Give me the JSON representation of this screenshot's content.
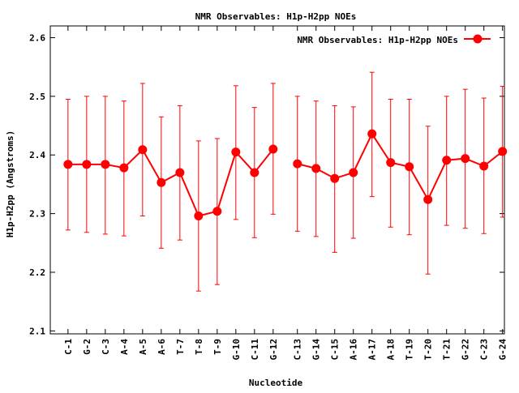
{
  "chart_data": {
    "type": "line",
    "title": "NMR Observables: H1p-H2pp NOEs",
    "xlabel": "Nucleotide",
    "ylabel": "H1p-H2pp (Angstroms)",
    "ylim": [
      2.1,
      2.6
    ],
    "yticks": [
      "2.1",
      "2.2",
      "2.3",
      "2.4",
      "2.5",
      "2.6"
    ],
    "legend": {
      "label": "NMR Observables: H1p-H2pp NOEs",
      "placement": "top-right"
    },
    "grid": false,
    "color": "#ff0000",
    "segments": [
      {
        "x": [
          1,
          2,
          3,
          4,
          5,
          6,
          7,
          8,
          9,
          10,
          11,
          12
        ]
      },
      {
        "x": [
          13,
          14,
          15,
          16,
          17,
          18,
          19,
          20,
          21,
          22,
          23,
          24
        ]
      }
    ],
    "categories": [
      "C-1",
      "G-2",
      "C-3",
      "A-4",
      "A-5",
      "A-6",
      "T-7",
      "T-8",
      "T-9",
      "G-10",
      "C-11",
      "G-12",
      "C-13",
      "G-14",
      "C-15",
      "A-16",
      "A-17",
      "A-18",
      "T-19",
      "T-20",
      "T-21",
      "G-22",
      "C-23",
      "G-24"
    ],
    "x": [
      1,
      2,
      3,
      4,
      5,
      6,
      7,
      8,
      9,
      10,
      11,
      12,
      13.3,
      14.3,
      15.3,
      16.3,
      17.3,
      18.3,
      19.3,
      20.3,
      21.3,
      22.3,
      23.3,
      24.3
    ],
    "values": [
      2.384,
      2.384,
      2.384,
      2.378,
      2.409,
      2.353,
      2.37,
      2.296,
      2.304,
      2.405,
      2.37,
      2.41,
      2.385,
      2.377,
      2.36,
      2.37,
      2.436,
      2.387,
      2.38,
      2.324,
      2.391,
      2.394,
      2.381,
      2.406
    ],
    "err_low": [
      2.272,
      2.268,
      2.265,
      2.262,
      2.296,
      2.241,
      2.255,
      2.168,
      2.179,
      2.29,
      2.259,
      2.299,
      2.27,
      2.261,
      2.234,
      2.258,
      2.329,
      2.277,
      2.264,
      2.197,
      2.28,
      2.275,
      2.266,
      2.294
    ],
    "err_high": [
      2.495,
      2.5,
      2.5,
      2.492,
      2.522,
      2.465,
      2.484,
      2.424,
      2.428,
      2.518,
      2.481,
      2.522,
      2.5,
      2.492,
      2.484,
      2.482,
      2.541,
      2.495,
      2.495,
      2.449,
      2.5,
      2.512,
      2.497,
      2.517
    ]
  }
}
